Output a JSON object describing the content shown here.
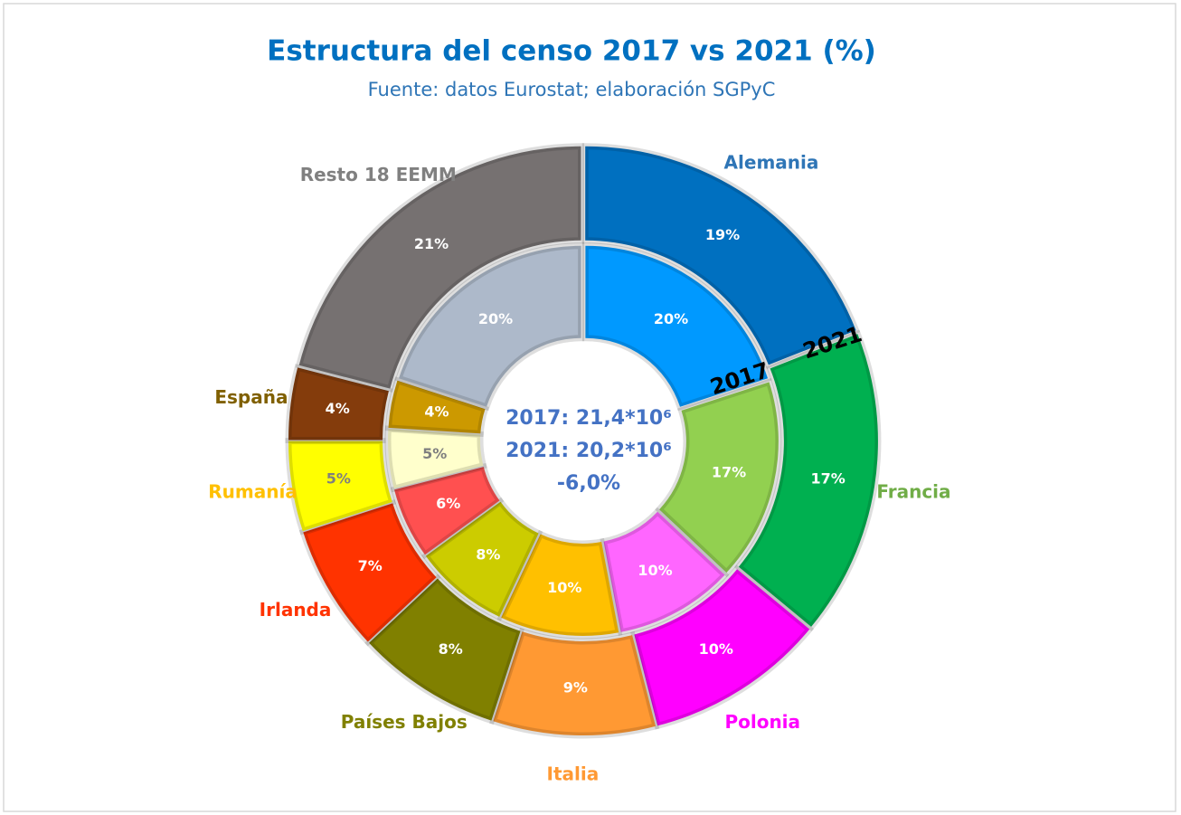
{
  "chart_data": {
    "type": "donut",
    "title": "Estructura del censo 2017 vs 2021 (%)",
    "subtitle": "Fuente: datos Eurostat; elaboración SGPyC",
    "categories": [
      "Alemania",
      "Francia",
      "Polonia",
      "Italia",
      "Países Bajos",
      "Irlanda",
      "Rumanía",
      "España",
      "Resto 18 EEMM"
    ],
    "label_colors": [
      "#2e75b6",
      "#70ad47",
      "#ff00ff",
      "#ff9933",
      "#808000",
      "#ff3300",
      "#ffc000",
      "#806000",
      "#808080"
    ],
    "series": [
      {
        "name": "2017",
        "values": [
          20,
          17,
          10,
          10,
          8,
          6,
          5,
          4,
          20
        ],
        "value_labels": [
          "20%",
          "17%",
          "10%",
          "10%",
          "8%",
          "6%",
          "5%",
          "4%",
          "20%"
        ],
        "colors": [
          "#0099ff",
          "#92d050",
          "#ff66ff",
          "#ffc000",
          "#cccc00",
          "#ff5050",
          "#ffffcc",
          "#cc9900",
          "#adb9ca"
        ]
      },
      {
        "name": "2021",
        "values": [
          19,
          17,
          10,
          9,
          8,
          7,
          5,
          4,
          21
        ],
        "value_labels": [
          "19%",
          "17%",
          "10%",
          "9%",
          "8%",
          "7%",
          "5%",
          "4%",
          "21%"
        ],
        "colors": [
          "#0070c0",
          "#00b050",
          "#ff00ff",
          "#ff9933",
          "#808000",
          "#ff3300",
          "#ffff00",
          "#843c0c",
          "#767171"
        ]
      }
    ],
    "center_labels": [
      "2017: 21,4*10⁶",
      "2021: 20,2*10⁶",
      "-6,0%"
    ]
  }
}
